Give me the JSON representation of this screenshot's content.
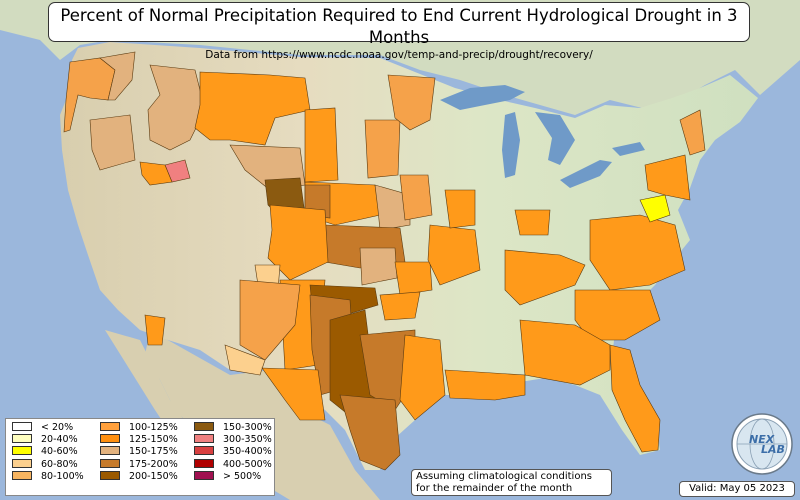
{
  "title": "Percent of Normal Precipitation Required to End Current Hydrological Drought in 3 Months",
  "subtitle": "Data from https://www.ncdc.noaa.gov/temp-and-precip/drought/recovery/",
  "colors": {
    "ocean": "#9bb7dc",
    "land": "#e4dcc4",
    "p100_125": "#f5a24a",
    "p125_150": "#ff9a1a",
    "p150_175": "#e2b27e",
    "p175_200": "#c67a2a",
    "p200_150": "#9b5a00",
    "p40_60": "#ffff00",
    "p300_350": "#f08080"
  },
  "legend": {
    "col1": [
      {
        "label": "< 20%",
        "color": "#ffffff"
      },
      {
        "label": "20-40%",
        "color": "#ffffc0"
      },
      {
        "label": "40-60%",
        "color": "#ffff00"
      },
      {
        "label": "60-80%",
        "color": "#fcd08e"
      },
      {
        "label": "80-100%",
        "color": "#f8b560"
      }
    ],
    "col2": [
      {
        "label": "100-125%",
        "color": "#ffa03c"
      },
      {
        "label": "125-150%",
        "color": "#ff9010"
      },
      {
        "label": "150-175%",
        "color": "#e2b27e"
      },
      {
        "label": "175-200%",
        "color": "#c67a2a"
      },
      {
        "label": "200-150%",
        "color": "#9b5a00"
      }
    ],
    "col3": [
      {
        "label": "150-300%",
        "color": "#8b5a10"
      },
      {
        "label": "300-350%",
        "color": "#f08080"
      },
      {
        "label": "350-400%",
        "color": "#d84040"
      },
      {
        "label": "400-500%",
        "color": "#b00000"
      },
      {
        "label": "> 500%",
        "color": "#a01050"
      }
    ]
  },
  "note": {
    "line1": "Assuming climatological conditions",
    "line2": "for the remainder of the month"
  },
  "valid_date": "Valid: May 05 2023",
  "logo": {
    "icon": "nexlab-globe-logo",
    "text1": "NEX",
    "text2": "LAB"
  }
}
